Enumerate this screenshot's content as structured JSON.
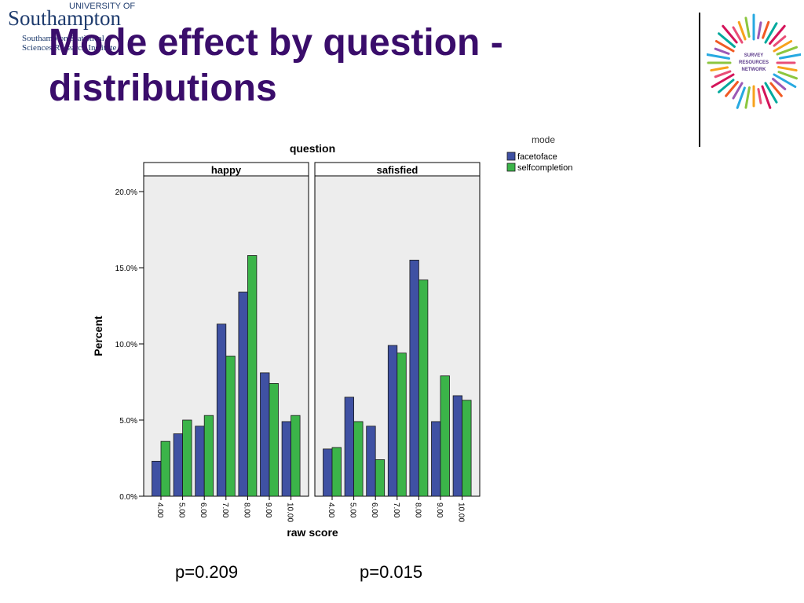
{
  "header": {
    "university_small": "UNIVERSITY OF",
    "university_big": "Southampton",
    "institute_line1": "Southampton Statistical",
    "institute_line2": "Sciences Research Institute",
    "title_line1": "Mode effect by question -",
    "title_line2": "distributions"
  },
  "network_logo": {
    "line1": "SURVEY",
    "line2": "RESOURCES",
    "line3": "NETWORK"
  },
  "colors": {
    "facetoface": "#3f51a3",
    "selfcompletion": "#3bb449",
    "panel_bg": "#ededed",
    "title": "#3a0d6b"
  },
  "chart_data": {
    "type": "bar",
    "title": "question",
    "xlabel": "raw score",
    "ylabel": "Percent",
    "legend_title": "mode",
    "legend_position": "top-right",
    "ylim": [
      0,
      21
    ],
    "yticks": [
      "0.0%",
      "5.0%",
      "10.0%",
      "15.0%",
      "20.0%"
    ],
    "ytick_values": [
      0,
      5,
      10,
      15,
      20
    ],
    "categories": [
      "4.00",
      "5.00",
      "6.00",
      "7.00",
      "8.00",
      "9.00",
      "10.00"
    ],
    "series_names": [
      "facetoface",
      "selfcompletion"
    ],
    "panels": [
      {
        "name": "happy",
        "series": [
          {
            "name": "facetoface",
            "values": [
              2.3,
              4.1,
              4.6,
              11.3,
              13.4,
              8.1,
              4.9
            ]
          },
          {
            "name": "selfcompletion",
            "values": [
              3.6,
              5.0,
              5.3,
              9.2,
              15.8,
              7.4,
              5.3
            ]
          }
        ]
      },
      {
        "name": "safisfied",
        "series": [
          {
            "name": "facetoface",
            "values": [
              3.1,
              6.5,
              4.6,
              9.9,
              15.5,
              4.9,
              6.6
            ]
          },
          {
            "name": "selfcompletion",
            "values": [
              3.2,
              4.9,
              2.4,
              9.4,
              14.2,
              7.9,
              6.3
            ]
          }
        ]
      }
    ]
  },
  "pvalues": [
    "p=0.209",
    "p=0.015"
  ]
}
